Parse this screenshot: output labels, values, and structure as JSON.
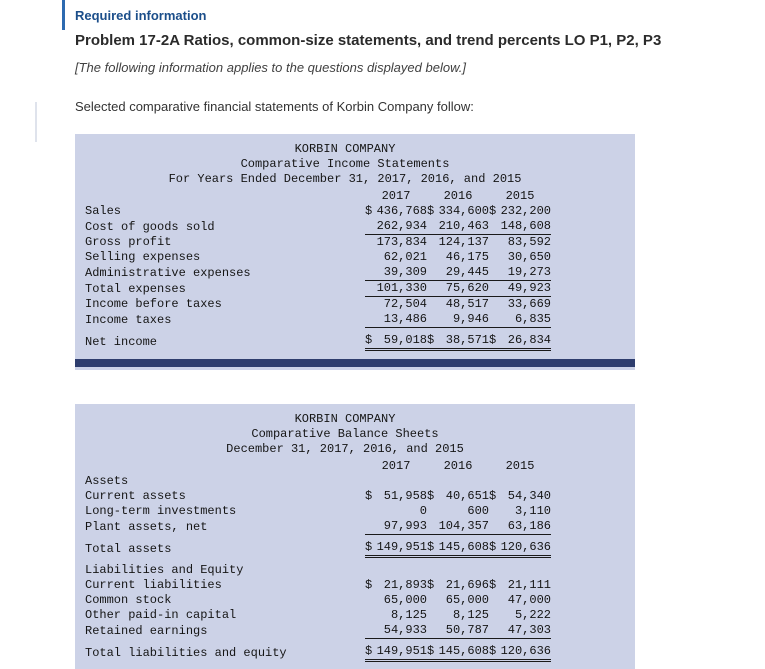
{
  "colors": {
    "accent_blue": "#2d6ab0",
    "required_blue": "#1b4e8a",
    "table_bg": "#ccd2e7",
    "navy_bar": "#2e3d6e"
  },
  "header": {
    "required_label": "Required information",
    "title": "Problem 17-2A Ratios, common-size statements, and trend percents LO P1, P2, P3",
    "note": "[The following information applies to the questions displayed below.]",
    "intro": "Selected comparative financial statements of Korbin Company follow:"
  },
  "income_statement": {
    "company": "KORBIN COMPANY",
    "subtitle": "Comparative Income Statements",
    "period": "For Years Ended December 31, 2017, 2016, and 2015",
    "years": [
      "2017",
      "2016",
      "2015"
    ],
    "rows": [
      {
        "label": "Sales",
        "dollar": true,
        "values": [
          "436,768",
          "334,600",
          "232,200"
        ]
      },
      {
        "label": "Cost of goods sold",
        "values": [
          "262,934",
          "210,463",
          "148,608"
        ],
        "underline": "single"
      },
      {
        "label": "Gross profit",
        "values": [
          "173,834",
          "124,137",
          "83,592"
        ]
      },
      {
        "label": "Selling expenses",
        "values": [
          "62,021",
          "46,175",
          "30,650"
        ]
      },
      {
        "label": "Administrative expenses",
        "values": [
          "39,309",
          "29,445",
          "19,273"
        ],
        "underline": "single"
      },
      {
        "label": "Total expenses",
        "values": [
          "101,330",
          "75,620",
          "49,923"
        ],
        "underline": "single"
      },
      {
        "label": "Income before taxes",
        "values": [
          "72,504",
          "48,517",
          "33,669"
        ]
      },
      {
        "label": "Income taxes",
        "values": [
          "13,486",
          "9,946",
          "6,835"
        ],
        "underline": "single"
      },
      {
        "label": "Net income",
        "dollar": true,
        "values": [
          "59,018",
          "38,571",
          "26,834"
        ],
        "underline": "double",
        "gap_before": true
      }
    ]
  },
  "balance_sheet": {
    "company": "KORBIN COMPANY",
    "subtitle": "Comparative Balance Sheets",
    "period": "December 31, 2017, 2016, and 2015",
    "years": [
      "2017",
      "2016",
      "2015"
    ],
    "rows": [
      {
        "label": "Assets",
        "bold": true
      },
      {
        "label": "Current assets",
        "dollar": true,
        "values": [
          "51,958",
          "40,651",
          "54,340"
        ]
      },
      {
        "label": "Long-term investments",
        "values": [
          "0",
          "600",
          "3,110"
        ]
      },
      {
        "label": "Plant assets, net",
        "values": [
          "97,993",
          "104,357",
          "63,186"
        ],
        "underline": "single"
      },
      {
        "label": "Total assets",
        "dollar": true,
        "values": [
          "149,951",
          "145,608",
          "120,636"
        ],
        "underline": "double",
        "gap_before": true
      },
      {
        "label": "Liabilities and Equity",
        "bold": true,
        "gap_before": true
      },
      {
        "label": "Current liabilities",
        "dollar": true,
        "values": [
          "21,893",
          "21,696",
          "21,111"
        ]
      },
      {
        "label": "Common stock",
        "values": [
          "65,000",
          "65,000",
          "47,000"
        ]
      },
      {
        "label": "Other paid-in capital",
        "values": [
          "8,125",
          "8,125",
          "5,222"
        ]
      },
      {
        "label": "Retained earnings",
        "values": [
          "54,933",
          "50,787",
          "47,303"
        ],
        "underline": "single"
      },
      {
        "label": "Total liabilities and equity",
        "dollar": true,
        "values": [
          "149,951",
          "145,608",
          "120,636"
        ],
        "underline": "double",
        "gap_before": true
      }
    ]
  }
}
